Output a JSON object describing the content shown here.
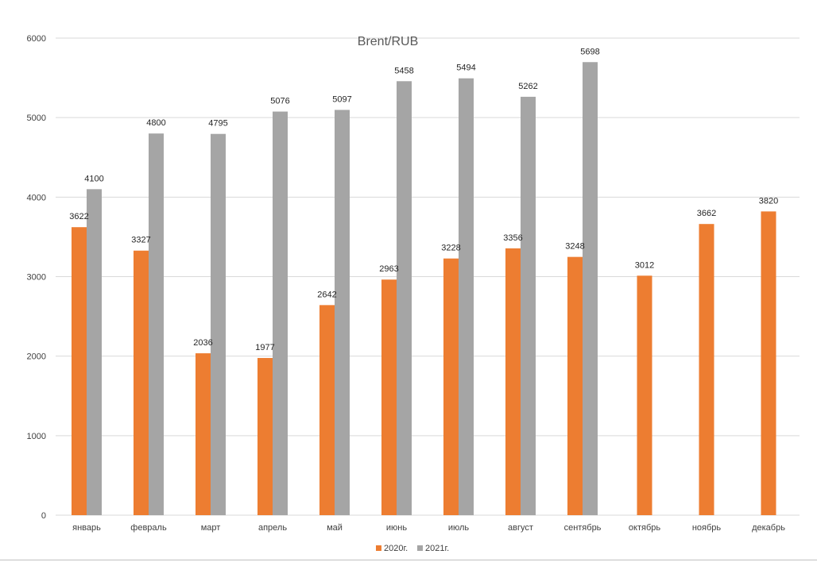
{
  "chart_data": {
    "type": "bar",
    "title": "Brent/RUB",
    "xlabel": "",
    "ylabel": "",
    "ylim": [
      0,
      6000
    ],
    "yticks": [
      0,
      1000,
      2000,
      3000,
      4000,
      5000,
      6000
    ],
    "grid": true,
    "legend_position": "bottom",
    "categories": [
      "январь",
      "февраль",
      "март",
      "апрель",
      "май",
      "июнь",
      "июль",
      "август",
      "сентябрь",
      "октябрь",
      "ноябрь",
      "декабрь"
    ],
    "series": [
      {
        "name": "2020г.",
        "color": "#ed7d31",
        "values": [
          3622,
          3327,
          2036,
          1977,
          2642,
          2963,
          3228,
          3356,
          3248,
          3012,
          3662,
          3820
        ]
      },
      {
        "name": "2021г.",
        "color": "#a5a5a5",
        "values": [
          4100,
          4800,
          4795,
          5076,
          5097,
          5458,
          5494,
          5262,
          5698,
          null,
          null,
          null
        ]
      }
    ]
  }
}
